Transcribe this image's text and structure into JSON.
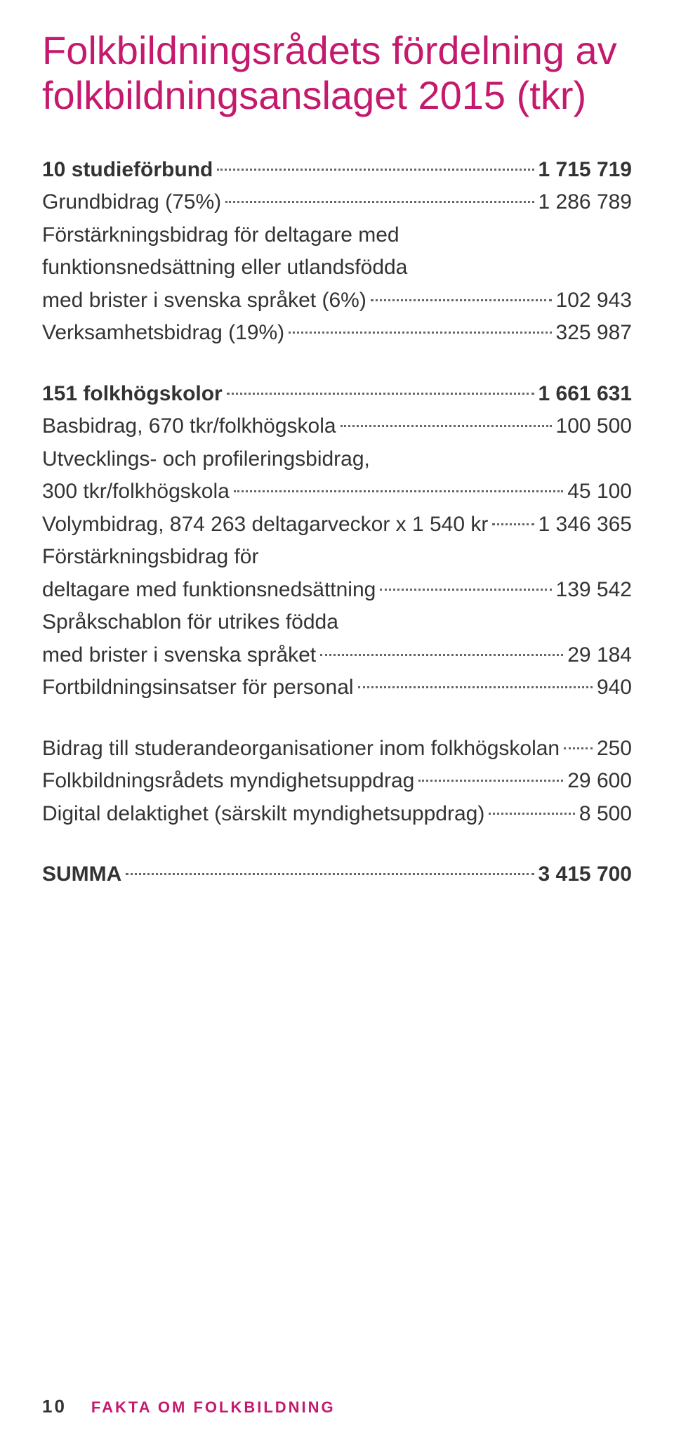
{
  "colors": {
    "accent": "#c4196c",
    "text": "#333333",
    "background": "#ffffff",
    "leader": "#666666"
  },
  "title": {
    "line1": "Folkbildningsrådets fördelning av",
    "line2": "folkbildningsanslaget 2015 (tkr)"
  },
  "section1": {
    "heading": {
      "label": "10 studieförbund",
      "value": "1 715 719"
    },
    "items": [
      {
        "label": "Grundbidrag (75%)",
        "value": "1 286 789"
      },
      {
        "label_line1": "Förstärkningsbidrag för deltagare med",
        "label_line2": "funktionsnedsättning eller utlandsfödda",
        "label_line3": "med brister i svenska språket (6%)",
        "value": "102 943"
      },
      {
        "label": "Verksamhetsbidrag (19%)",
        "value": "325 987"
      }
    ]
  },
  "section2": {
    "heading": {
      "label": "151 folkhögskolor",
      "value": "1 661 631"
    },
    "items": [
      {
        "label": "Basbidrag, 670 tkr/folkhögskola",
        "value": "100 500"
      },
      {
        "label_line1": "Utvecklings- och profileringsbidrag,",
        "label_line2": "300 tkr/folkhögskola",
        "value": "45 100"
      },
      {
        "label": "Volymbidrag, 874 263 deltagarveckor x 1 540 kr",
        "value": "1 346 365"
      },
      {
        "label_line1": "Förstärkningsbidrag för",
        "label_line2": "deltagare med funktionsnedsättning",
        "value": "139 542"
      },
      {
        "label_line1": "Språkschablon för utrikes födda",
        "label_line2": "med brister i svenska språket",
        "value": "29 184"
      },
      {
        "label": "Fortbildningsinsatser för personal",
        "value": "940"
      }
    ]
  },
  "section3": {
    "items": [
      {
        "label": "Bidrag till studerandeorganisationer inom folkhögskolan",
        "value": "250"
      },
      {
        "label": "Folkbildningsrådets myndighetsuppdrag",
        "value": "29 600"
      },
      {
        "label": "Digital delaktighet (särskilt myndighetsuppdrag)",
        "value": "8 500"
      }
    ]
  },
  "summa": {
    "label": "SUMMA",
    "value": "3 415 700"
  },
  "footer": {
    "page": "10",
    "text": "FAKTA OM FOLKBILDNING"
  }
}
